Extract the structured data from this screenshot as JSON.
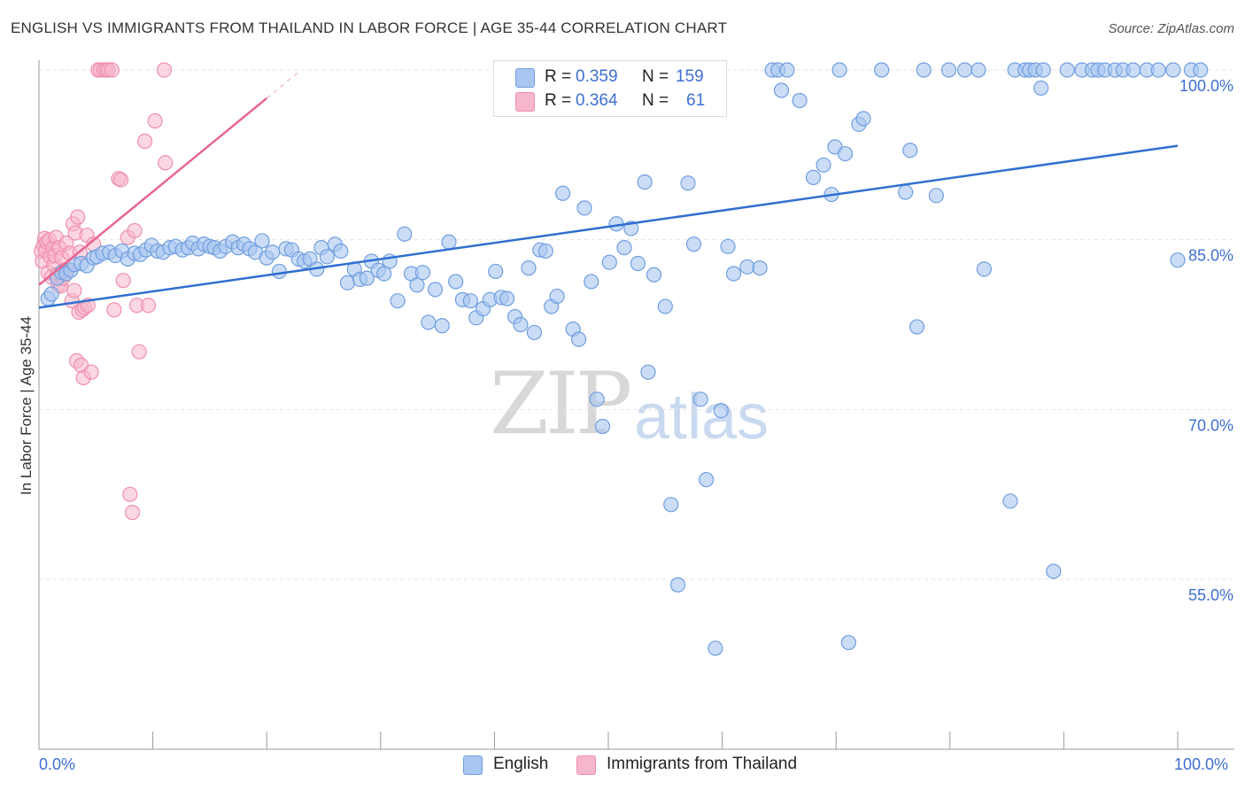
{
  "header": {
    "title": "ENGLISH VS IMMIGRANTS FROM THAILAND IN LABOR FORCE | AGE 35-44 CORRELATION CHART",
    "source": "Source: ZipAtlas.com"
  },
  "watermark": {
    "zip": "ZIP",
    "atlas": "atlas"
  },
  "legend": {
    "rows": [
      {
        "r_label": "R = ",
        "r_value": "0.359",
        "n_label": "N = ",
        "n_value": "159"
      },
      {
        "r_label": "R = ",
        "r_value": "0.364",
        "n_label": "N = ",
        "n_value": "61"
      }
    ]
  },
  "colors": {
    "english_fill": "#a9c6f0",
    "english_stroke": "#6f9ee0",
    "english_line": "#2f6fd0",
    "thai_fill": "#f7b7cb",
    "thai_stroke": "#ef8fad",
    "thai_line": "#e8668f",
    "tick_text": "#3d6fd1",
    "grid": "#e3e3e3"
  },
  "chart_data": {
    "type": "scatter",
    "title": "ENGLISH VS IMMIGRANTS FROM THAILAND IN LABOR FORCE | AGE 35-44 CORRELATION CHART",
    "ylabel": "In Labor Force | Age 35-44",
    "xlabel": "",
    "x_tick_labels": [
      "0.0%",
      "100.0%"
    ],
    "y_tick_labels": [
      "100.0%",
      "85.0%",
      "70.0%",
      "55.0%"
    ],
    "y_ticks": [
      100,
      85,
      70,
      55
    ],
    "xlim": [
      0,
      100
    ],
    "ylim": [
      43,
      101.5
    ],
    "grid": true,
    "legend_placement": "top-center",
    "series": [
      {
        "name": "English",
        "r": 0.359,
        "n": 159,
        "trend": {
          "x": [
            0,
            100
          ],
          "y": [
            79.0,
            93.3
          ]
        },
        "points": [
          [
            0.8,
            79.8
          ],
          [
            1.1,
            80.2
          ],
          [
            1.6,
            81.6
          ],
          [
            2.0,
            82.1
          ],
          [
            2.4,
            82.0
          ],
          [
            2.8,
            82.3
          ],
          [
            3.1,
            82.8
          ],
          [
            3.7,
            82.9
          ],
          [
            4.2,
            82.7
          ],
          [
            4.8,
            83.4
          ],
          [
            5.1,
            83.5
          ],
          [
            5.6,
            83.8
          ],
          [
            6.2,
            83.9
          ],
          [
            6.7,
            83.6
          ],
          [
            7.3,
            84.0
          ],
          [
            7.8,
            83.3
          ],
          [
            8.4,
            83.8
          ],
          [
            8.9,
            83.7
          ],
          [
            9.4,
            84.1
          ],
          [
            9.9,
            84.5
          ],
          [
            10.4,
            84.0
          ],
          [
            10.9,
            83.9
          ],
          [
            11.5,
            84.3
          ],
          [
            12.0,
            84.4
          ],
          [
            12.6,
            84.1
          ],
          [
            13.1,
            84.3
          ],
          [
            13.5,
            84.7
          ],
          [
            14.0,
            84.2
          ],
          [
            14.5,
            84.6
          ],
          [
            15.0,
            84.4
          ],
          [
            15.4,
            84.3
          ],
          [
            15.9,
            84.0
          ],
          [
            16.4,
            84.4
          ],
          [
            17.0,
            84.8
          ],
          [
            17.5,
            84.3
          ],
          [
            18.0,
            84.6
          ],
          [
            18.5,
            84.2
          ],
          [
            19.0,
            83.9
          ],
          [
            19.6,
            84.9
          ],
          [
            20.0,
            83.4
          ],
          [
            20.5,
            83.9
          ],
          [
            21.1,
            82.2
          ],
          [
            21.7,
            84.2
          ],
          [
            22.2,
            84.1
          ],
          [
            22.8,
            83.3
          ],
          [
            23.3,
            83.1
          ],
          [
            23.8,
            83.3
          ],
          [
            24.4,
            82.4
          ],
          [
            24.8,
            84.3
          ],
          [
            25.3,
            83.5
          ],
          [
            26.0,
            84.6
          ],
          [
            26.5,
            84.0
          ],
          [
            27.1,
            81.2
          ],
          [
            27.7,
            82.4
          ],
          [
            28.2,
            81.5
          ],
          [
            28.8,
            81.6
          ],
          [
            29.2,
            83.1
          ],
          [
            29.8,
            82.3
          ],
          [
            30.3,
            82.0
          ],
          [
            30.8,
            83.1
          ],
          [
            31.5,
            79.6
          ],
          [
            32.1,
            85.5
          ],
          [
            32.7,
            82.0
          ],
          [
            33.2,
            81.0
          ],
          [
            33.7,
            82.1
          ],
          [
            34.2,
            77.7
          ],
          [
            34.8,
            80.6
          ],
          [
            35.4,
            77.4
          ],
          [
            36.0,
            84.8
          ],
          [
            36.6,
            81.3
          ],
          [
            37.2,
            79.7
          ],
          [
            37.9,
            79.6
          ],
          [
            38.4,
            78.1
          ],
          [
            39.0,
            78.9
          ],
          [
            39.6,
            79.7
          ],
          [
            40.1,
            82.2
          ],
          [
            40.6,
            79.9
          ],
          [
            41.1,
            79.8
          ],
          [
            41.8,
            78.2
          ],
          [
            42.3,
            77.5
          ],
          [
            43.0,
            82.5
          ],
          [
            43.5,
            76.8
          ],
          [
            44.0,
            84.1
          ],
          [
            44.5,
            84.0
          ],
          [
            45.0,
            79.1
          ],
          [
            45.5,
            80.0
          ],
          [
            46.0,
            89.1
          ],
          [
            46.9,
            77.1
          ],
          [
            47.4,
            76.2
          ],
          [
            47.9,
            87.8
          ],
          [
            48.5,
            81.3
          ],
          [
            49.0,
            70.9
          ],
          [
            49.5,
            68.5
          ],
          [
            50.1,
            83.0
          ],
          [
            50.7,
            86.4
          ],
          [
            51.4,
            84.3
          ],
          [
            52.0,
            86.0
          ],
          [
            52.6,
            82.9
          ],
          [
            53.2,
            90.1
          ],
          [
            53.5,
            73.3
          ],
          [
            54.0,
            81.9
          ],
          [
            55.0,
            79.1
          ],
          [
            55.5,
            61.6
          ],
          [
            56.1,
            54.5
          ],
          [
            57.0,
            90.0
          ],
          [
            57.5,
            84.6
          ],
          [
            58.1,
            70.9
          ],
          [
            58.6,
            63.8
          ],
          [
            59.4,
            48.9
          ],
          [
            59.9,
            69.9
          ],
          [
            60.5,
            84.4
          ],
          [
            61.0,
            82.0
          ],
          [
            62.2,
            82.6
          ],
          [
            63.3,
            82.5
          ],
          [
            64.4,
            100.0
          ],
          [
            64.9,
            100.0
          ],
          [
            65.2,
            98.2
          ],
          [
            65.7,
            100.0
          ],
          [
            66.8,
            97.3
          ],
          [
            68.0,
            90.5
          ],
          [
            68.9,
            91.6
          ],
          [
            69.6,
            89.0
          ],
          [
            69.9,
            93.2
          ],
          [
            70.3,
            100.0
          ],
          [
            70.8,
            92.6
          ],
          [
            71.1,
            49.4
          ],
          [
            72.0,
            95.2
          ],
          [
            72.4,
            95.7
          ],
          [
            74.0,
            100.0
          ],
          [
            76.1,
            89.2
          ],
          [
            76.5,
            92.9
          ],
          [
            77.1,
            77.3
          ],
          [
            77.7,
            100.0
          ],
          [
            78.8,
            88.9
          ],
          [
            79.9,
            100.0
          ],
          [
            81.3,
            100.0
          ],
          [
            82.5,
            100.0
          ],
          [
            83.0,
            82.4
          ],
          [
            85.3,
            61.9
          ],
          [
            85.7,
            100.0
          ],
          [
            86.6,
            100.0
          ],
          [
            87.0,
            100.0
          ],
          [
            87.5,
            100.0
          ],
          [
            88.0,
            98.4
          ],
          [
            88.2,
            100.0
          ],
          [
            89.1,
            55.7
          ],
          [
            90.3,
            100.0
          ],
          [
            91.6,
            100.0
          ],
          [
            92.5,
            100.0
          ],
          [
            93.0,
            100.0
          ],
          [
            93.6,
            100.0
          ],
          [
            94.5,
            100.0
          ],
          [
            95.2,
            100.0
          ],
          [
            96.1,
            100.0
          ],
          [
            97.3,
            100.0
          ],
          [
            98.3,
            100.0
          ],
          [
            99.6,
            100.0
          ],
          [
            100.0,
            83.2
          ],
          [
            101.2,
            100.0
          ],
          [
            102.0,
            100.0
          ]
        ]
      },
      {
        "name": "Immigrants from Thailand",
        "r": 0.364,
        "n": 61,
        "trend": {
          "x": [
            0,
            20
          ],
          "y": [
            81.0,
            97.5
          ]
        },
        "points": [
          [
            0.2,
            84.0
          ],
          [
            0.3,
            83.1
          ],
          [
            0.4,
            84.5
          ],
          [
            0.5,
            85.1
          ],
          [
            0.6,
            84.0
          ],
          [
            0.7,
            84.8
          ],
          [
            0.8,
            82.1
          ],
          [
            0.9,
            85.0
          ],
          [
            1.0,
            83.5
          ],
          [
            1.1,
            81.7
          ],
          [
            1.2,
            84.2
          ],
          [
            1.3,
            82.8
          ],
          [
            1.4,
            83.6
          ],
          [
            1.5,
            85.2
          ],
          [
            1.6,
            81.9
          ],
          [
            1.7,
            81.0
          ],
          [
            1.8,
            84.3
          ],
          [
            1.9,
            80.9
          ],
          [
            2.0,
            83.4
          ],
          [
            2.1,
            81.6
          ],
          [
            2.2,
            82.3
          ],
          [
            2.4,
            84.7
          ],
          [
            2.5,
            82.4
          ],
          [
            2.7,
            83.8
          ],
          [
            2.9,
            79.6
          ],
          [
            3.0,
            86.4
          ],
          [
            3.1,
            80.5
          ],
          [
            3.2,
            85.6
          ],
          [
            3.3,
            74.3
          ],
          [
            3.4,
            87.0
          ],
          [
            3.5,
            78.6
          ],
          [
            3.6,
            83.9
          ],
          [
            3.7,
            73.9
          ],
          [
            3.8,
            78.8
          ],
          [
            3.9,
            72.8
          ],
          [
            4.0,
            79.0
          ],
          [
            4.2,
            85.4
          ],
          [
            4.3,
            79.2
          ],
          [
            4.6,
            73.3
          ],
          [
            4.8,
            84.6
          ],
          [
            5.2,
            100.0
          ],
          [
            5.4,
            100.0
          ],
          [
            5.7,
            100.0
          ],
          [
            5.9,
            100.0
          ],
          [
            6.1,
            100.0
          ],
          [
            6.4,
            100.0
          ],
          [
            6.6,
            78.8
          ],
          [
            7.0,
            90.4
          ],
          [
            7.2,
            90.3
          ],
          [
            7.4,
            81.4
          ],
          [
            7.8,
            85.2
          ],
          [
            8.0,
            62.5
          ],
          [
            8.2,
            60.9
          ],
          [
            8.4,
            85.8
          ],
          [
            8.6,
            79.2
          ],
          [
            8.8,
            75.1
          ],
          [
            9.3,
            93.7
          ],
          [
            9.6,
            79.2
          ],
          [
            10.2,
            95.5
          ],
          [
            11.0,
            100.0
          ],
          [
            11.1,
            91.8
          ]
        ]
      }
    ]
  },
  "bottom_legend": {
    "english": "English",
    "thai": "Immigrants from Thailand"
  }
}
